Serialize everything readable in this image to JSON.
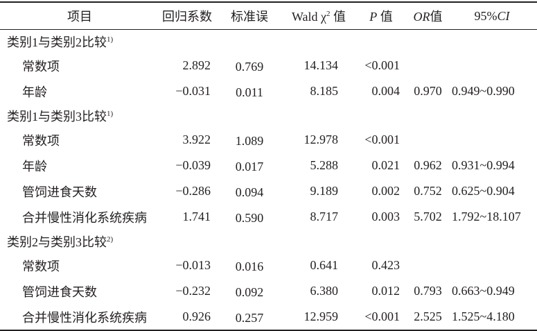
{
  "header": [
    [
      "项目"
    ],
    [
      "回归系数"
    ],
    [
      "标准误"
    ],
    [
      "Wald χ",
      "2",
      " 值"
    ],
    [
      "P",
      " 值"
    ],
    [
      "OR",
      "值"
    ],
    [
      "95%",
      "CI"
    ]
  ],
  "groups": [
    {
      "title": "类别1与类别2比较",
      "note": "1)",
      "rows": [
        [
          "常数项",
          "2.892",
          "0.769",
          "14.134",
          "<0.001",
          null,
          null
        ],
        [
          "年龄",
          "−0.031",
          "0.011",
          "8.185",
          "0.004",
          "0.970",
          "0.949~0.990"
        ]
      ]
    },
    {
      "title": "类别1与类别3比较",
      "note": "1)",
      "rows": [
        [
          "常数项",
          "3.922",
          "1.089",
          "12.978",
          "<0.001",
          null,
          null
        ],
        [
          "年龄",
          "−0.039",
          "0.017",
          "5.288",
          "0.021",
          "0.962",
          "0.931~0.994"
        ],
        [
          "管饲进食天数",
          "−0.286",
          "0.094",
          "9.189",
          "0.002",
          "0.752",
          "0.625~0.904"
        ],
        [
          "合并慢性消化系统疾病",
          "1.741",
          "0.590",
          "8.717",
          "0.003",
          "5.702",
          "1.792~18.107"
        ]
      ]
    },
    {
      "title": "类别2与类别3比较",
      "note": "2)",
      "rows": [
        [
          "常数项",
          "−0.013",
          "0.016",
          "0.641",
          "0.423",
          null,
          null
        ],
        [
          "管饲进食天数",
          "−0.232",
          "0.092",
          "6.380",
          "0.012",
          "0.793",
          "0.663~0.949"
        ],
        [
          "合并慢性消化系统疾病",
          "0.926",
          "0.257",
          "12.959",
          "<0.001",
          "2.525",
          "1.525~4.180"
        ]
      ]
    }
  ]
}
